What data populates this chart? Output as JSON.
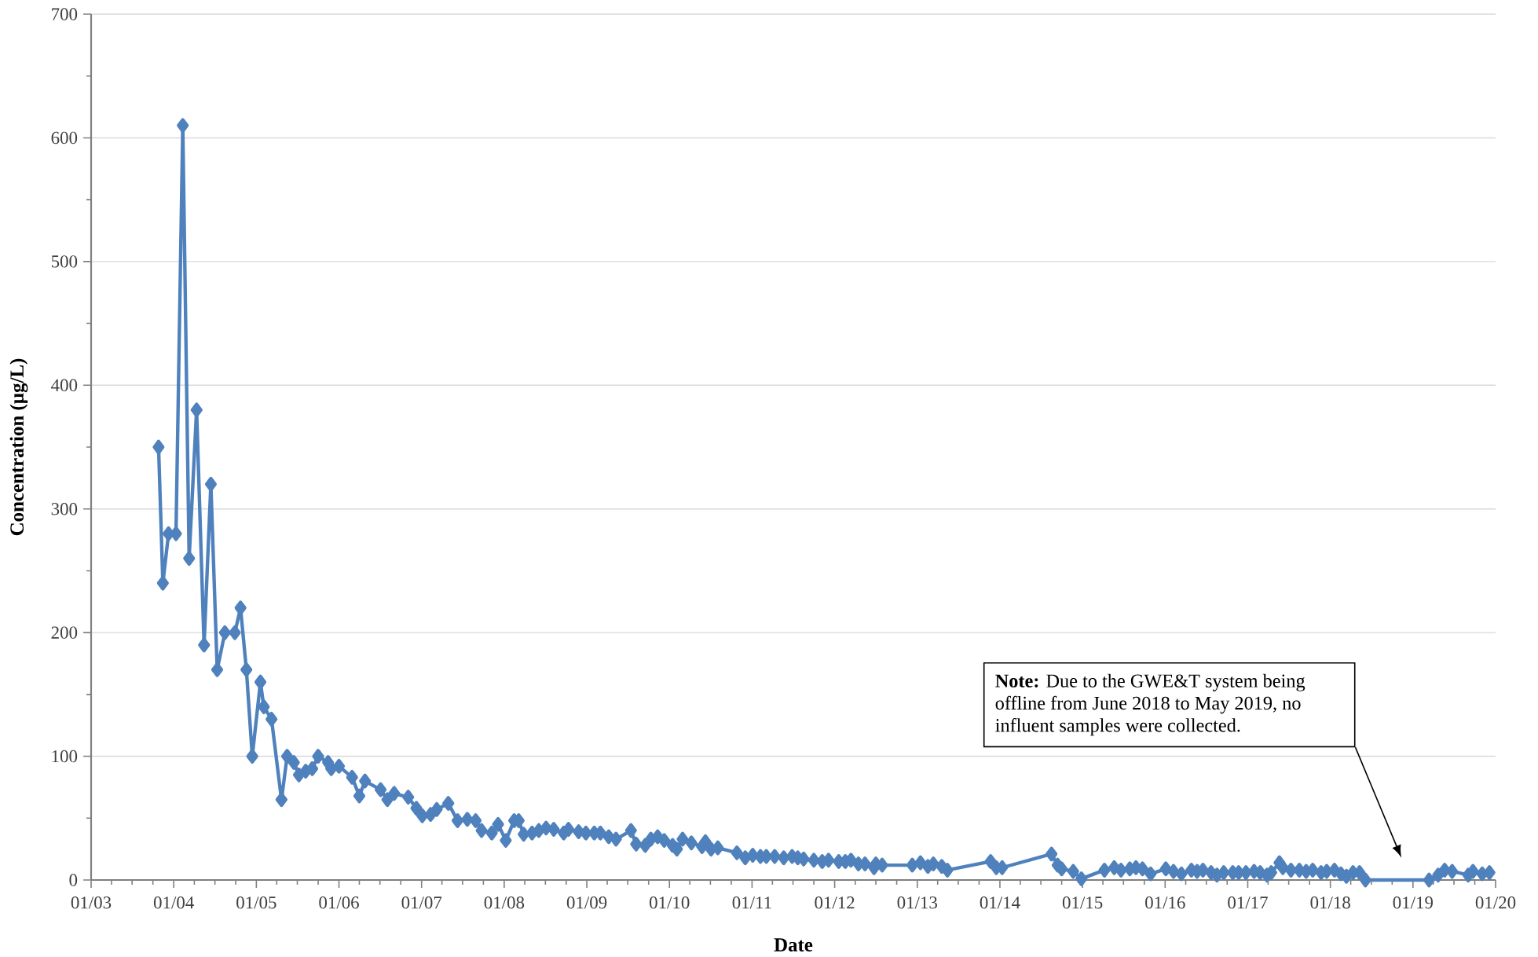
{
  "chart_data": {
    "type": "line",
    "xlabel": "Date",
    "ylabel": "Concentration (µg/L)",
    "x": [
      "2003-10-26",
      "2003-11-14",
      "2003-12-09",
      "2004-01-11",
      "2004-02-10",
      "2004-03-09",
      "2004-04-11",
      "2004-05-14",
      "2004-06-13",
      "2004-07-11",
      "2004-08-14",
      "2004-09-27",
      "2004-10-22",
      "2004-11-17",
      "2004-12-13",
      "2005-01-19",
      "2005-02-03",
      "2005-03-09",
      "2005-04-22",
      "2005-05-17",
      "2005-06-16",
      "2005-07-08",
      "2005-08-07",
      "2005-09-05",
      "2005-10-01",
      "2005-11-14",
      "2005-11-28",
      "2006-01-01",
      "2006-02-28",
      "2006-04-01",
      "2006-04-26",
      "2006-07-04",
      "2006-08-03",
      "2006-09-02",
      "2006-11-03",
      "2006-12-09",
      "2007-01-04",
      "2007-02-10",
      "2007-03-09",
      "2007-04-29",
      "2007-06-09",
      "2007-07-22",
      "2007-08-28",
      "2007-09-23",
      "2007-11-07",
      "2007-12-05",
      "2008-01-08",
      "2008-02-14",
      "2008-03-05",
      "2008-03-27",
      "2008-05-03",
      "2008-06-02",
      "2008-07-04",
      "2008-08-07",
      "2008-09-20",
      "2008-10-11",
      "2008-11-25",
      "2008-12-27",
      "2009-02-03",
      "2009-03-02",
      "2009-04-08",
      "2009-05-10",
      "2009-07-15",
      "2009-08-07",
      "2009-09-16",
      "2009-10-11",
      "2009-11-10",
      "2009-12-09",
      "2010-01-15",
      "2010-02-03",
      "2010-02-28",
      "2010-04-08",
      "2010-05-25",
      "2010-06-09",
      "2010-07-04",
      "2010-08-03",
      "2010-10-26",
      "2010-12-02",
      "2011-01-04",
      "2011-02-07",
      "2011-03-05",
      "2011-04-11",
      "2011-05-21",
      "2011-06-27",
      "2011-07-22",
      "2011-08-17",
      "2011-10-01",
      "2011-11-07",
      "2011-12-05",
      "2012-01-19",
      "2012-02-17",
      "2012-03-13",
      "2012-04-15",
      "2012-05-14",
      "2012-06-23",
      "2012-07-01",
      "2012-07-29",
      "2012-12-09",
      "2013-01-15",
      "2013-02-17",
      "2013-03-13",
      "2013-04-19",
      "2013-05-14",
      "2013-11-21",
      "2013-12-16",
      "2014-01-11",
      "2014-08-17",
      "2014-09-13",
      "2014-10-01",
      "2014-11-21",
      "2014-12-27",
      "2015-04-08",
      "2015-05-21",
      "2015-06-20",
      "2015-07-29",
      "2015-08-25",
      "2015-09-23",
      "2015-10-29",
      "2016-01-04",
      "2016-02-07",
      "2016-03-13",
      "2016-04-26",
      "2016-05-21",
      "2016-06-16",
      "2016-07-22",
      "2016-08-17",
      "2016-09-16",
      "2016-10-26",
      "2016-11-21",
      "2016-12-23",
      "2017-01-29",
      "2017-02-25",
      "2017-03-27",
      "2017-04-15",
      "2017-05-21",
      "2017-06-05",
      "2017-07-11",
      "2017-08-17",
      "2017-09-16",
      "2017-10-15",
      "2017-11-21",
      "2017-12-16",
      "2018-01-19",
      "2018-02-17",
      "2018-03-13",
      "2018-04-11",
      "2018-05-10",
      "2018-06-05",
      "2019-03-13",
      "2019-04-22",
      "2019-05-21",
      "2019-06-23",
      "2019-09-02",
      "2019-09-23",
      "2019-11-03",
      "2019-12-05"
    ],
    "values": [
      350,
      240,
      280,
      280,
      610,
      260,
      380,
      190,
      320,
      170,
      200,
      200,
      220,
      170,
      100,
      160,
      140,
      130,
      65,
      100,
      95,
      85,
      88,
      90,
      100,
      95,
      90,
      92,
      83,
      68,
      80,
      73,
      65,
      70,
      67,
      58,
      52,
      53,
      57,
      62,
      48,
      49,
      48,
      40,
      38,
      45,
      32,
      48,
      48,
      37,
      38,
      40,
      42,
      41,
      38,
      41,
      39,
      38,
      38,
      38,
      35,
      33,
      40,
      29,
      28,
      33,
      35,
      32,
      28,
      25,
      33,
      30,
      27,
      31,
      25,
      26,
      22,
      18,
      20,
      19,
      19,
      19,
      18,
      19,
      18,
      17,
      16,
      15,
      16,
      15,
      15,
      16,
      13,
      13,
      10,
      13,
      12,
      12,
      14,
      11,
      13,
      11,
      8,
      15,
      10,
      10,
      21,
      12,
      9,
      7,
      1,
      8,
      10,
      8,
      9,
      10,
      9,
      5,
      9,
      7,
      5,
      8,
      7,
      8,
      6,
      4,
      6,
      6,
      6,
      6,
      7,
      6,
      4,
      6,
      14,
      10,
      8,
      8,
      7,
      8,
      6,
      7,
      8,
      5,
      3,
      6,
      6,
      0,
      0,
      4,
      8,
      7,
      4,
      7,
      5,
      6
    ],
    "color": "#4f81bd",
    "marker": "diamond",
    "line_style": "solid",
    "grid": "y",
    "xlim": [
      "2003-01",
      "2020-01"
    ],
    "ylim": [
      0,
      700
    ],
    "xticks": [
      {
        "value": "2003-01",
        "label": "01/03"
      },
      {
        "value": "2004-01",
        "label": "01/04"
      },
      {
        "value": "2005-01",
        "label": "01/05"
      },
      {
        "value": "2006-01",
        "label": "01/06"
      },
      {
        "value": "2007-01",
        "label": "01/07"
      },
      {
        "value": "2008-01",
        "label": "01/08"
      },
      {
        "value": "2009-01",
        "label": "01/09"
      },
      {
        "value": "2010-01",
        "label": "01/10"
      },
      {
        "value": "2011-01",
        "label": "01/11"
      },
      {
        "value": "2012-01",
        "label": "01/12"
      },
      {
        "value": "2013-01",
        "label": "01/13"
      },
      {
        "value": "2014-01",
        "label": "01/14"
      },
      {
        "value": "2015-01",
        "label": "01/15"
      },
      {
        "value": "2016-01",
        "label": "01/16"
      },
      {
        "value": "2017-01",
        "label": "01/17"
      },
      {
        "value": "2018-01",
        "label": "01/18"
      },
      {
        "value": "2019-01",
        "label": "01/19"
      },
      {
        "value": "2020-01",
        "label": "01/20"
      },
      {
        "value": "2003-04",
        "label": null
      },
      {
        "value": "2003-07",
        "label": null
      },
      {
        "value": "2003-10",
        "label": null
      },
      {
        "value": "2004-04",
        "label": null
      },
      {
        "value": "2004-07",
        "label": null
      },
      {
        "value": "2004-10",
        "label": null
      },
      {
        "value": "2005-04",
        "label": null
      },
      {
        "value": "2005-07",
        "label": null
      },
      {
        "value": "2005-10",
        "label": null
      },
      {
        "value": "2006-04",
        "label": null
      },
      {
        "value": "2006-07",
        "label": null
      },
      {
        "value": "2006-10",
        "label": null
      },
      {
        "value": "2007-04",
        "label": null
      },
      {
        "value": "2007-07",
        "label": null
      },
      {
        "value": "2007-10",
        "label": null
      },
      {
        "value": "2008-04",
        "label": null
      },
      {
        "value": "2008-07",
        "label": null
      },
      {
        "value": "2008-10",
        "label": null
      },
      {
        "value": "2009-04",
        "label": null
      },
      {
        "value": "2009-07",
        "label": null
      },
      {
        "value": "2009-10",
        "label": null
      },
      {
        "value": "2010-04",
        "label": null
      },
      {
        "value": "2010-07",
        "label": null
      },
      {
        "value": "2010-10",
        "label": null
      },
      {
        "value": "2011-04",
        "label": null
      },
      {
        "value": "2011-07",
        "label": null
      },
      {
        "value": "2011-10",
        "label": null
      },
      {
        "value": "2012-04",
        "label": null
      },
      {
        "value": "2012-07",
        "label": null
      },
      {
        "value": "2012-10",
        "label": null
      },
      {
        "value": "2013-04",
        "label": null
      },
      {
        "value": "2013-07",
        "label": null
      },
      {
        "value": "2013-10",
        "label": null
      },
      {
        "value": "2014-04",
        "label": null
      },
      {
        "value": "2014-07",
        "label": null
      },
      {
        "value": "2014-10",
        "label": null
      },
      {
        "value": "2015-04",
        "label": null
      },
      {
        "value": "2015-07",
        "label": null
      },
      {
        "value": "2015-10",
        "label": null
      },
      {
        "value": "2016-04",
        "label": null
      },
      {
        "value": "2016-07",
        "label": null
      },
      {
        "value": "2016-10",
        "label": null
      },
      {
        "value": "2017-04",
        "label": null
      },
      {
        "value": "2017-07",
        "label": null
      },
      {
        "value": "2017-10",
        "label": null
      },
      {
        "value": "2018-04",
        "label": null
      },
      {
        "value": "2018-07",
        "label": null
      },
      {
        "value": "2018-10",
        "label": null
      },
      {
        "value": "2019-04",
        "label": null
      },
      {
        "value": "2019-07",
        "label": null
      },
      {
        "value": "2019-10",
        "label": null
      }
    ],
    "yticks": [
      0,
      100,
      200,
      300,
      400,
      500,
      600,
      700,
      {
        "value": 50,
        "label": null
      },
      {
        "value": 150,
        "label": null
      },
      {
        "value": 250,
        "label": null
      },
      {
        "value": 350,
        "label": null
      },
      {
        "value": 450,
        "label": null
      },
      {
        "value": 550,
        "label": null
      },
      {
        "value": 650,
        "label": null
      }
    ],
    "annotations": [
      "**Note:** Due to the GWE&T system being offline from June 2018 to May 2019, no influent samples were collected."
    ]
  }
}
